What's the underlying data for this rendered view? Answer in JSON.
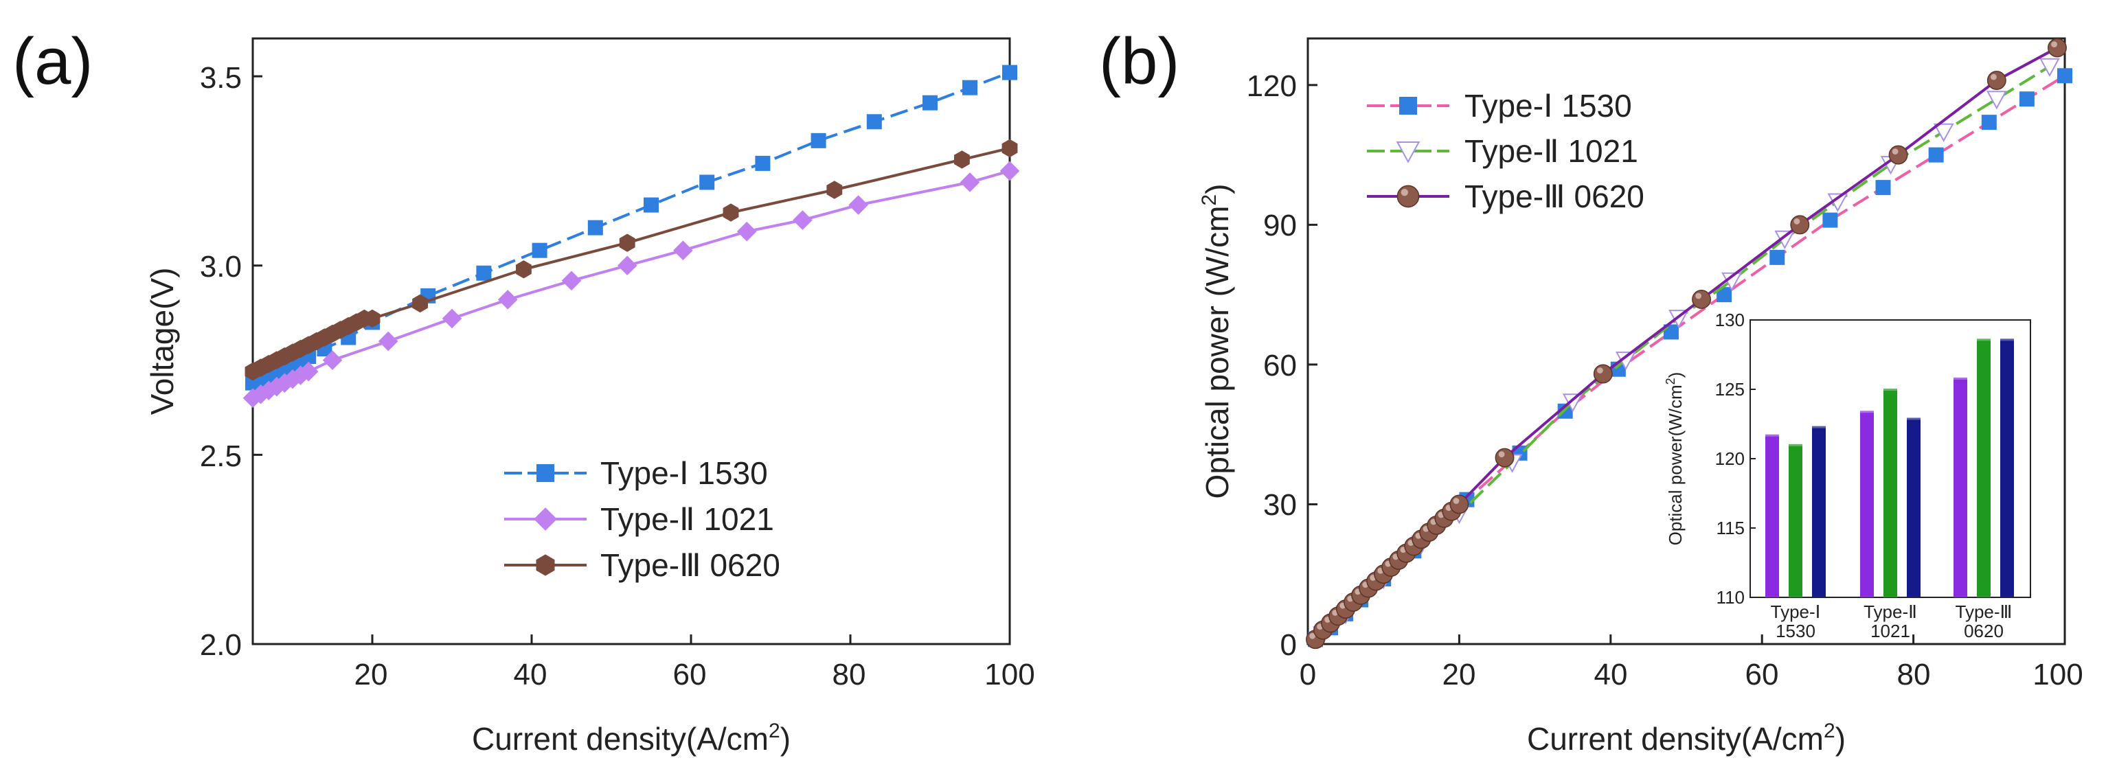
{
  "chart_data": [
    {
      "panel": "(a)",
      "type": "line",
      "xlabel": "Current density(A/cm2)",
      "ylabel": "Voltage(V)",
      "xlim": [
        5,
        100
      ],
      "ylim": [
        2.0,
        3.6
      ],
      "xticks": [
        "20",
        "40",
        "60",
        "80",
        "100"
      ],
      "yticks": [
        "2.0",
        "2.5",
        "3.0",
        "3.5"
      ],
      "legend_position": "lower-right",
      "series": [
        {
          "name": "Type-Ⅰ 1530",
          "color": "#2f7fe0",
          "marker": "square",
          "dash": "dashed",
          "x": [
            5,
            6,
            7,
            8,
            9,
            10,
            11,
            12,
            14,
            17,
            20,
            27,
            34,
            41,
            48,
            55,
            62,
            69,
            76,
            83,
            90,
            95,
            100
          ],
          "y": [
            2.69,
            2.7,
            2.71,
            2.72,
            2.73,
            2.74,
            2.75,
            2.76,
            2.78,
            2.81,
            2.85,
            2.92,
            2.98,
            3.04,
            3.1,
            3.16,
            3.22,
            3.27,
            3.33,
            3.38,
            3.43,
            3.47,
            3.51
          ]
        },
        {
          "name": "Type-Ⅱ 1021",
          "color": "#c080f0",
          "marker": "diamond",
          "dash": "solid",
          "x": [
            5,
            6,
            7,
            8,
            9,
            10,
            11,
            12,
            15,
            22,
            30,
            37,
            45,
            52,
            59,
            67,
            74,
            81,
            95,
            100
          ],
          "y": [
            2.65,
            2.66,
            2.67,
            2.68,
            2.69,
            2.7,
            2.71,
            2.72,
            2.75,
            2.8,
            2.86,
            2.91,
            2.96,
            3.0,
            3.04,
            3.09,
            3.12,
            3.16,
            3.22,
            3.25
          ]
        },
        {
          "name": "Type-Ⅲ 0620",
          "color": "#7a4b3c",
          "marker": "hexagon",
          "dash": "solid",
          "x": [
            5,
            6,
            7,
            8,
            9,
            10,
            11,
            12,
            13,
            14,
            15,
            16,
            17,
            18,
            19,
            20,
            26,
            39,
            52,
            65,
            78,
            94,
            100
          ],
          "y": [
            2.72,
            2.73,
            2.74,
            2.75,
            2.76,
            2.77,
            2.78,
            2.79,
            2.8,
            2.81,
            2.82,
            2.83,
            2.84,
            2.85,
            2.86,
            2.86,
            2.9,
            2.99,
            3.06,
            3.14,
            3.2,
            3.28,
            3.31
          ]
        }
      ]
    },
    {
      "panel": "(b)",
      "type": "line",
      "xlabel": "Current density(A/cm2)",
      "ylabel": "Optical power (W/cm2)",
      "xlim": [
        0,
        100
      ],
      "ylim": [
        0,
        130
      ],
      "xticks": [
        "0",
        "20",
        "40",
        "60",
        "80",
        "100"
      ],
      "yticks": [
        "0",
        "30",
        "60",
        "90",
        "120"
      ],
      "legend_position": "top-left",
      "series": [
        {
          "name": "Type-Ⅰ 1530",
          "color": "#ee5fa7",
          "marker_color": "#2f7fe0",
          "marker": "square",
          "dash": "dashed",
          "x": [
            1,
            3,
            5,
            7,
            10,
            14,
            21,
            28,
            34,
            41,
            48,
            55,
            62,
            69,
            76,
            83,
            90,
            95,
            100
          ],
          "y": [
            1,
            3.5,
            6.5,
            9.5,
            14,
            20,
            31,
            41,
            50,
            59,
            67,
            75,
            83,
            91,
            98,
            105,
            112,
            117,
            122
          ]
        },
        {
          "name": "Type-Ⅱ 1021",
          "color": "#5fb83a",
          "marker_color": "#a890e8",
          "marker": "triangle-down",
          "dash": "dashed",
          "x": [
            2,
            5,
            10,
            15,
            20,
            27,
            35,
            42,
            49,
            56,
            63,
            70,
            77,
            84,
            91,
            98
          ],
          "y": [
            2,
            6.5,
            14,
            21.5,
            28,
            39,
            52,
            61,
            70,
            78,
            87,
            95,
            103,
            110,
            117,
            124
          ]
        },
        {
          "name": "Type-Ⅲ 0620",
          "color": "#7a1fa2",
          "marker_color": "#8b5a4a",
          "marker": "sphere",
          "dash": "solid",
          "x": [
            1,
            2,
            3,
            4,
            5,
            6,
            7,
            8,
            9,
            10,
            11,
            12,
            13,
            14,
            15,
            16,
            17,
            18,
            19,
            20,
            26,
            39,
            52,
            65,
            78,
            91,
            99
          ],
          "y": [
            1,
            3,
            4.5,
            6,
            7.5,
            9,
            10.5,
            12,
            13.5,
            15,
            16.5,
            18,
            19.5,
            21,
            22.5,
            24,
            25.5,
            27,
            28.5,
            30,
            40,
            58,
            74,
            90,
            105,
            121,
            128
          ]
        }
      ],
      "inset": {
        "type": "bar",
        "ylabel": "Optical power(W/cm2)",
        "ylim": [
          110,
          130
        ],
        "yticks": [
          "110",
          "115",
          "120",
          "125",
          "130"
        ],
        "categories": [
          "Type-Ⅰ 1530",
          "Type-Ⅱ 1021",
          "Type-Ⅲ 0620"
        ],
        "category_lines": [
          [
            "Type-Ⅰ",
            "1530"
          ],
          [
            "Type-Ⅱ",
            "1021"
          ],
          [
            "Type-Ⅲ",
            "0620"
          ]
        ],
        "bar_colors": [
          "#8a2be2",
          "#1f9a1f",
          "#141a8a"
        ],
        "values": [
          [
            121.6,
            120.9,
            122.2
          ],
          [
            123.3,
            124.9,
            122.8
          ],
          [
            125.7,
            128.5,
            128.5
          ]
        ]
      }
    }
  ]
}
